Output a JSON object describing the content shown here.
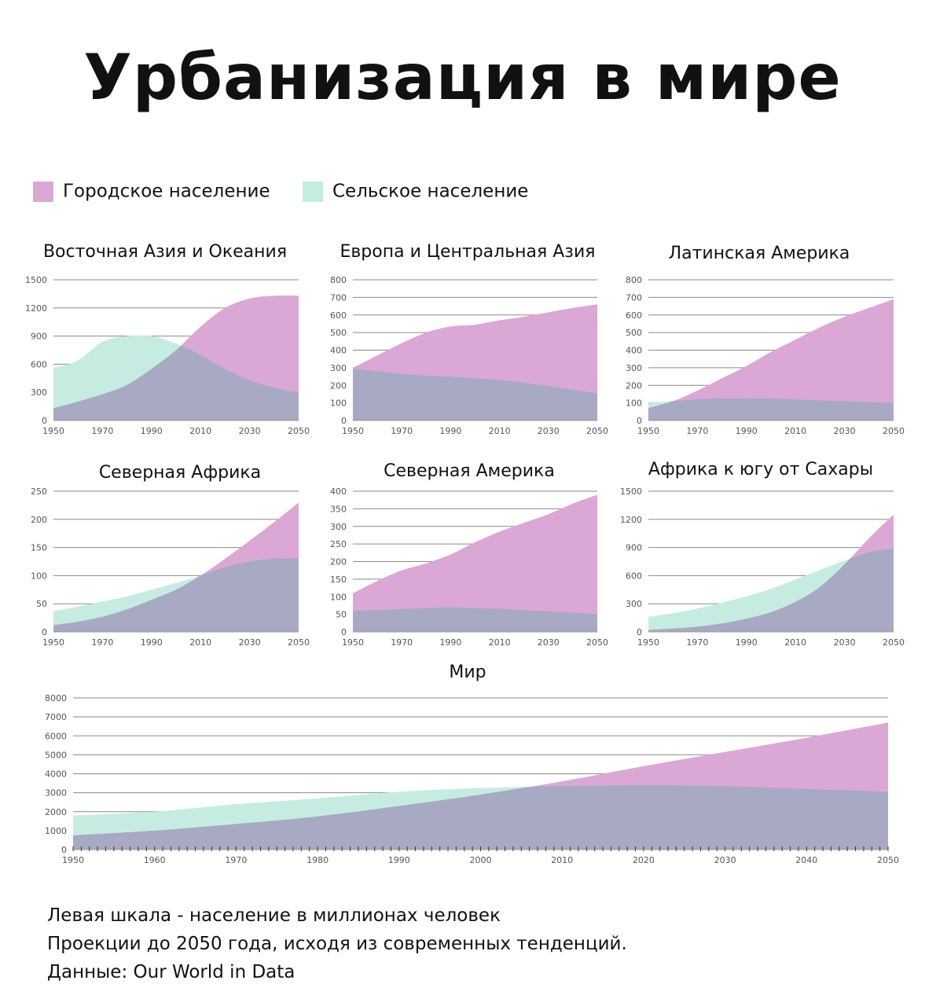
{
  "title": "Урбанизация в мире",
  "legend": {
    "urban": {
      "label": "Городское население",
      "color": "#dba8d6"
    },
    "rural": {
      "label": "Сельское население",
      "color": "#c6ece1"
    }
  },
  "colors": {
    "overlap": "#a8a9c2",
    "grid": "#8a8a8a"
  },
  "notes": [
    "Левая шкала -  население в миллионах человек",
    "Проекции до 2050 года, исходя из современных тенденций.",
    "Данные: Our World in Data"
  ],
  "chart_data": [
    {
      "type": "area",
      "title": "Восточная Азия и Океания",
      "x": [
        1950,
        1960,
        1970,
        1980,
        1990,
        2000,
        2010,
        2020,
        2030,
        2040,
        2050
      ],
      "xticks": [
        "1950",
        "1970",
        "1990",
        "2010",
        "2030",
        "2050"
      ],
      "yticks": [
        "0",
        "300",
        "600",
        "900",
        "1200",
        "1500"
      ],
      "ylim": [
        0,
        1500
      ],
      "series": [
        {
          "name": "Городское население",
          "values": [
            130,
            200,
            280,
            380,
            550,
            750,
            1000,
            1200,
            1300,
            1330,
            1330
          ]
        },
        {
          "name": "Сельское население",
          "values": [
            560,
            640,
            840,
            900,
            900,
            820,
            700,
            550,
            430,
            350,
            300
          ]
        }
      ]
    },
    {
      "type": "area",
      "title": "Европа и Центральная Азия",
      "x": [
        1950,
        1960,
        1970,
        1980,
        1990,
        2000,
        2010,
        2020,
        2030,
        2040,
        2050
      ],
      "xticks": [
        "1950",
        "1970",
        "1990",
        "2010",
        "2030",
        "2050"
      ],
      "yticks": [
        "0",
        "100",
        "200",
        "300",
        "400",
        "500",
        "600",
        "700",
        "800"
      ],
      "ylim": [
        0,
        800
      ],
      "series": [
        {
          "name": "Городское население",
          "values": [
            300,
            370,
            440,
            500,
            535,
            545,
            570,
            590,
            615,
            640,
            660
          ]
        },
        {
          "name": "Сельское население",
          "values": [
            295,
            280,
            265,
            255,
            250,
            240,
            230,
            215,
            195,
            175,
            155
          ]
        }
      ]
    },
    {
      "type": "area",
      "title": "Латинская Америка",
      "x": [
        1950,
        1960,
        1970,
        1980,
        1990,
        2000,
        2010,
        2020,
        2030,
        2040,
        2050
      ],
      "xticks": [
        "1950",
        "1970",
        "1990",
        "2010",
        "2030",
        "2050"
      ],
      "yticks": [
        "0",
        "100",
        "200",
        "300",
        "400",
        "500",
        "600",
        "700",
        "800"
      ],
      "ylim": [
        0,
        800
      ],
      "series": [
        {
          "name": "Городское население",
          "values": [
            70,
            110,
            170,
            240,
            310,
            390,
            460,
            530,
            590,
            640,
            690
          ]
        },
        {
          "name": "Сельское население",
          "values": [
            100,
            110,
            120,
            125,
            125,
            125,
            120,
            115,
            110,
            105,
            100
          ]
        }
      ]
    },
    {
      "type": "area",
      "title": "Северная Африка",
      "x": [
        1950,
        1960,
        1970,
        1980,
        1990,
        2000,
        2010,
        2020,
        2030,
        2040,
        2050
      ],
      "xticks": [
        "1950",
        "1970",
        "1990",
        "2010",
        "2030",
        "2050"
      ],
      "yticks": [
        "0",
        "50",
        "100",
        "150",
        "200",
        "250"
      ],
      "ylim": [
        0,
        250
      ],
      "series": [
        {
          "name": "Городское население",
          "values": [
            12,
            18,
            27,
            40,
            57,
            75,
            100,
            130,
            162,
            195,
            230
          ]
        },
        {
          "name": "Сельское население",
          "values": [
            37,
            45,
            54,
            63,
            75,
            87,
            100,
            115,
            125,
            130,
            130
          ]
        }
      ]
    },
    {
      "type": "area",
      "title": "Северная Америка",
      "x": [
        1950,
        1960,
        1970,
        1980,
        1990,
        2000,
        2010,
        2020,
        2030,
        2040,
        2050
      ],
      "xticks": [
        "1950",
        "1970",
        "1990",
        "2010",
        "2030",
        "2050"
      ],
      "yticks": [
        "0",
        "50",
        "100",
        "150",
        "200",
        "250",
        "300",
        "350",
        "400"
      ],
      "ylim": [
        0,
        400
      ],
      "series": [
        {
          "name": "Городское население",
          "values": [
            110,
            145,
            175,
            195,
            220,
            255,
            285,
            310,
            335,
            365,
            390
          ]
        },
        {
          "name": "Сельское население",
          "values": [
            60,
            62,
            65,
            68,
            70,
            68,
            66,
            62,
            58,
            55,
            50
          ]
        }
      ]
    },
    {
      "type": "area",
      "title": "Африка к югу от Сахары",
      "x": [
        1950,
        1960,
        1970,
        1980,
        1990,
        2000,
        2010,
        2020,
        2030,
        2040,
        2050
      ],
      "xticks": [
        "1950",
        "1970",
        "1990",
        "2010",
        "2030",
        "2050"
      ],
      "yticks": [
        "0",
        "300",
        "600",
        "900",
        "1200",
        "1500"
      ],
      "ylim": [
        0,
        1500
      ],
      "series": [
        {
          "name": "Городское население",
          "values": [
            20,
            35,
            55,
            90,
            140,
            210,
            320,
            480,
            720,
            1000,
            1250
          ]
        },
        {
          "name": "Сельское население",
          "values": [
            160,
            200,
            250,
            310,
            380,
            460,
            560,
            660,
            760,
            850,
            890
          ]
        }
      ]
    },
    {
      "type": "area",
      "title": "Мир",
      "x": [
        1950,
        1960,
        1970,
        1980,
        1990,
        2000,
        2010,
        2020,
        2030,
        2040,
        2050
      ],
      "xticks": [
        "1950",
        "1960",
        "1970",
        "1980",
        "1990",
        "2000",
        "2010",
        "2020",
        "2030",
        "2040",
        "2050"
      ],
      "yticks": [
        "0",
        "1000",
        "2000",
        "3000",
        "4000",
        "5000",
        "6000",
        "7000",
        "8000"
      ],
      "ylim": [
        0,
        8000
      ],
      "series": [
        {
          "name": "Городское население",
          "values": [
            750,
            1000,
            1350,
            1750,
            2300,
            2900,
            3600,
            4400,
            5150,
            5900,
            6700
          ]
        },
        {
          "name": "Сельское население",
          "values": [
            1800,
            2000,
            2400,
            2700,
            3050,
            3250,
            3350,
            3400,
            3350,
            3200,
            3050
          ]
        }
      ]
    }
  ]
}
